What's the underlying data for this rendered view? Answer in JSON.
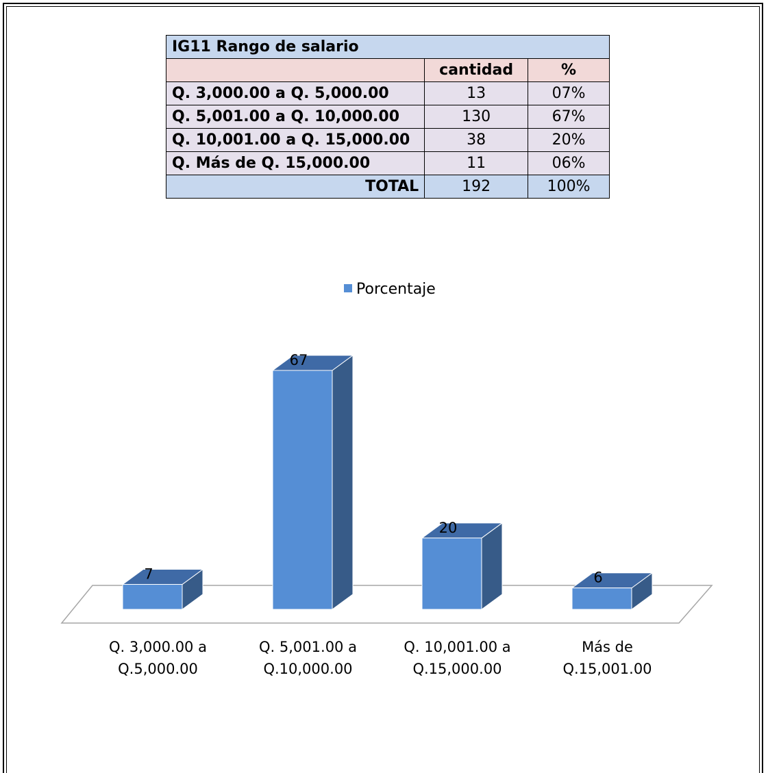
{
  "table": {
    "title": "IG11  Rango de salario",
    "headers": [
      "",
      "cantidad",
      "%"
    ],
    "rows": [
      {
        "label": "Q. 3,000.00 a Q. 5,000.00",
        "cantidad": "13",
        "pct": "07%"
      },
      {
        "label": "Q. 5,001.00 a Q. 10,000.00",
        "cantidad": "130",
        "pct": "67%"
      },
      {
        "label": "Q. 10,001.00 a Q. 15,000.00",
        "cantidad": "38",
        "pct": "20%"
      },
      {
        "label": "Q. Más de Q. 15,000.00",
        "cantidad": "11",
        "pct": "06%"
      }
    ],
    "total": {
      "label": "TOTAL",
      "cantidad": "192",
      "pct": "100%"
    }
  },
  "chart_data": {
    "type": "bar",
    "categories": [
      [
        "Q. 3,000.00 a",
        "Q.5,000.00"
      ],
      [
        "Q. 5,001.00 a",
        "Q.10,000.00"
      ],
      [
        "Q. 10,001.00 a",
        "Q.15,000.00"
      ],
      [
        "Más de",
        "Q.15,001.00"
      ]
    ],
    "series": [
      {
        "name": "Porcentaje",
        "values": [
          7,
          67,
          20,
          6
        ]
      }
    ],
    "ylim": [
      0,
      70
    ],
    "legend": "top",
    "grid": false,
    "three_d": true,
    "colors": {
      "front": "#558ed5",
      "side": "#375b88",
      "top": "#3f6aa6",
      "floor": "#a6a6a6",
      "border": "#ffffff"
    }
  }
}
